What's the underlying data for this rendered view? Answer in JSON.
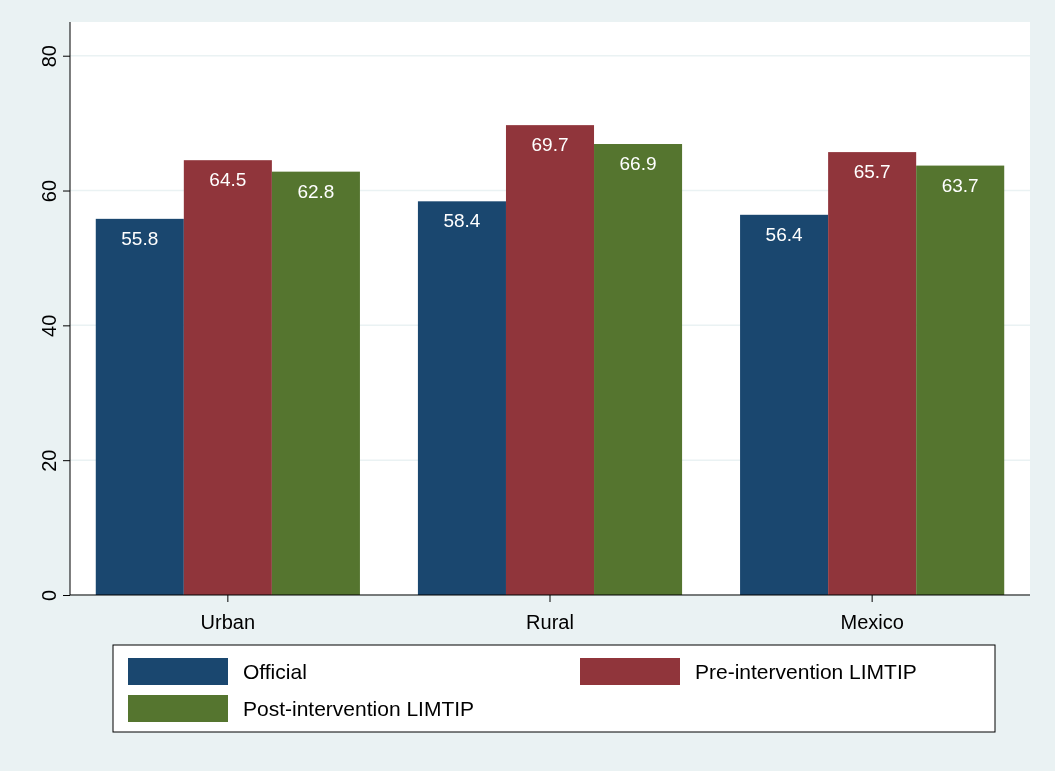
{
  "chart_data": {
    "type": "bar",
    "categories": [
      "Urban",
      "Rural",
      "Mexico"
    ],
    "series": [
      {
        "name": "Official",
        "color": "#1a476f",
        "values": [
          55.8,
          58.4,
          56.4
        ]
      },
      {
        "name": "Pre-intervention LIMTIP",
        "color": "#90353b",
        "values": [
          64.5,
          69.7,
          65.7
        ]
      },
      {
        "name": "Post-intervention LIMTIP",
        "color": "#55752f",
        "values": [
          62.8,
          66.9,
          63.7
        ]
      }
    ],
    "ylim": [
      0,
      85
    ],
    "yticks": [
      0,
      20,
      40,
      60,
      80
    ],
    "grid": "y",
    "legend": "bottom",
    "data_labels": true
  }
}
